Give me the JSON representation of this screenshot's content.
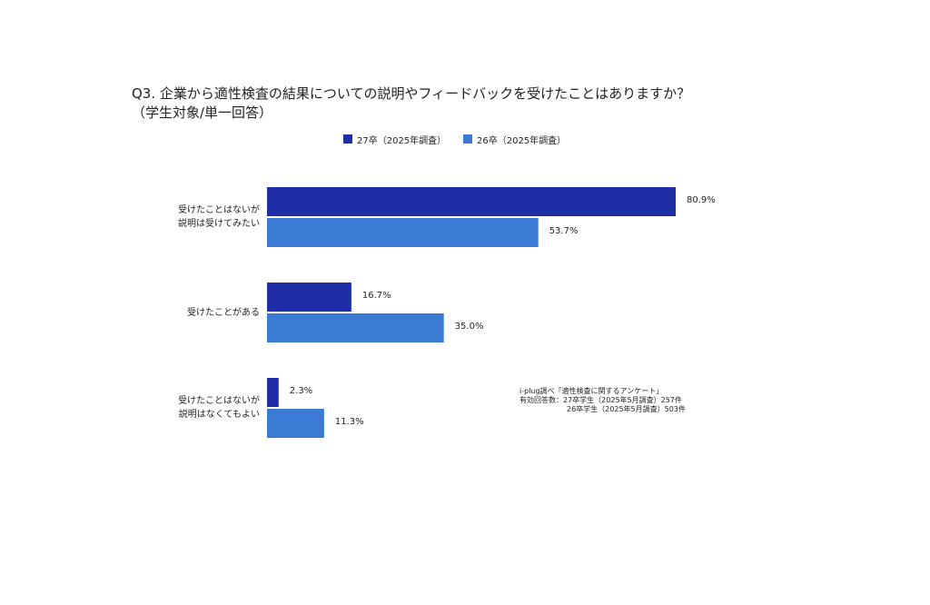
{
  "chart_data": {
    "type": "bar",
    "orientation": "horizontal",
    "title": "Q3. 企業から適性検査の結果についての説明やフィードバックを受けたことはありますか？",
    "subtitle": "（学生対象/単一回答）",
    "categories": [
      "受けたことはないが\n説明は受けてみたい",
      "受けたことがある",
      "受けたことはないが\n説明はなくてもよい"
    ],
    "series": [
      {
        "name": "27卒（2025年調査）",
        "color": "#1f2ea6",
        "values": [
          80.9,
          16.7,
          2.3
        ],
        "value_labels": [
          "80.9%",
          "16.7%",
          "2.3%"
        ]
      },
      {
        "name": "26卒（2025年調査）",
        "color": "#3a7ad4",
        "values": [
          53.7,
          35.0,
          11.3
        ],
        "value_labels": [
          "53.7%",
          "35.0%",
          "11.3%"
        ]
      }
    ],
    "legend": "top",
    "note": [
      "i-plug調べ「適性検査に関するアンケート」",
      "有効回答数：27卒学生（2025年5月調査）257件",
      "26卒学生（2025年5月調査）503件"
    ]
  }
}
